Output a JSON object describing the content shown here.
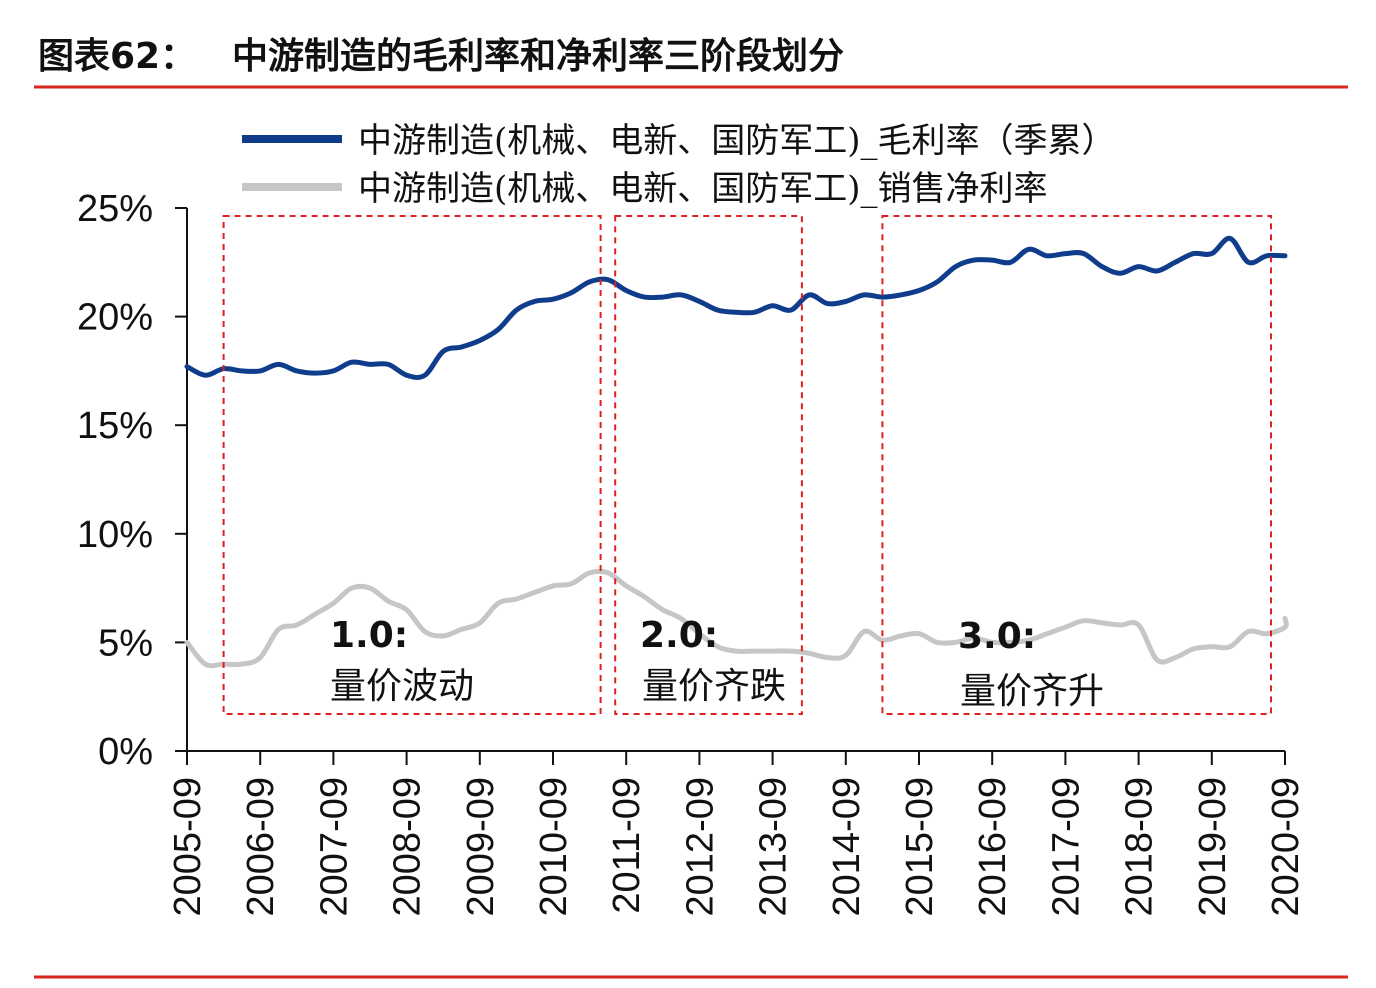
{
  "header": {
    "figure_number": "图表62：",
    "title": "中游制造的毛利率和净利率三阶段划分",
    "rule_color": "#d9251c"
  },
  "chart_data": {
    "type": "line",
    "title": "中游制造的毛利率和净利率三阶段划分",
    "xlabel": "",
    "ylabel": "",
    "ylim": [
      0,
      25
    ],
    "y_ticks": [
      "0%",
      "5%",
      "10%",
      "15%",
      "20%",
      "25%"
    ],
    "y_tick_values": [
      0,
      5,
      10,
      15,
      20,
      25
    ],
    "categories": [
      "2005-09",
      "2006-09",
      "2007-09",
      "2008-09",
      "2009-09",
      "2010-09",
      "2011-09",
      "2012-09",
      "2013-09",
      "2014-09",
      "2015-09",
      "2016-09",
      "2017-09",
      "2018-09",
      "2019-09",
      "2020-09"
    ],
    "grid": false,
    "legend_position": "top",
    "series": [
      {
        "name": "中游制造(机械、电新、国防军工)_毛利率（季累）",
        "color": "#0f3d8c",
        "points": [
          [
            2005.75,
            17.7
          ],
          [
            2006.0,
            17.3
          ],
          [
            2006.25,
            17.6
          ],
          [
            2006.5,
            17.5
          ],
          [
            2006.75,
            17.5
          ],
          [
            2007.0,
            17.8
          ],
          [
            2007.25,
            17.5
          ],
          [
            2007.5,
            17.4
          ],
          [
            2007.75,
            17.5
          ],
          [
            2008.0,
            17.9
          ],
          [
            2008.25,
            17.8
          ],
          [
            2008.5,
            17.8
          ],
          [
            2008.75,
            17.3
          ],
          [
            2009.0,
            17.3
          ],
          [
            2009.25,
            18.4
          ],
          [
            2009.5,
            18.6
          ],
          [
            2009.75,
            18.9
          ],
          [
            2010.0,
            19.4
          ],
          [
            2010.25,
            20.3
          ],
          [
            2010.5,
            20.7
          ],
          [
            2010.75,
            20.8
          ],
          [
            2011.0,
            21.1
          ],
          [
            2011.25,
            21.6
          ],
          [
            2011.5,
            21.7
          ],
          [
            2011.75,
            21.2
          ],
          [
            2012.0,
            20.9
          ],
          [
            2012.25,
            20.9
          ],
          [
            2012.5,
            21.0
          ],
          [
            2012.75,
            20.7
          ],
          [
            2013.0,
            20.3
          ],
          [
            2013.25,
            20.2
          ],
          [
            2013.5,
            20.2
          ],
          [
            2013.75,
            20.5
          ],
          [
            2014.0,
            20.3
          ],
          [
            2014.25,
            21.0
          ],
          [
            2014.5,
            20.6
          ],
          [
            2014.75,
            20.7
          ],
          [
            2015.0,
            21.0
          ],
          [
            2015.25,
            20.9
          ],
          [
            2015.5,
            21.0
          ],
          [
            2015.75,
            21.2
          ],
          [
            2016.0,
            21.6
          ],
          [
            2016.25,
            22.3
          ],
          [
            2016.5,
            22.6
          ],
          [
            2016.75,
            22.6
          ],
          [
            2017.0,
            22.5
          ],
          [
            2017.25,
            23.1
          ],
          [
            2017.5,
            22.8
          ],
          [
            2017.75,
            22.9
          ],
          [
            2018.0,
            22.9
          ],
          [
            2018.25,
            22.3
          ],
          [
            2018.5,
            22.0
          ],
          [
            2018.75,
            22.3
          ],
          [
            2019.0,
            22.1
          ],
          [
            2019.25,
            22.5
          ],
          [
            2019.5,
            22.9
          ],
          [
            2019.75,
            22.9
          ],
          [
            2020.0,
            23.6
          ],
          [
            2020.25,
            22.5
          ],
          [
            2020.5,
            22.8
          ],
          [
            2020.75,
            22.8
          ]
        ]
      },
      {
        "name": "中游制造(机械、电新、国防军工)_销售净利率",
        "color": "#c6c6c6",
        "points": [
          [
            2005.75,
            5.0
          ],
          [
            2006.0,
            4.0
          ],
          [
            2006.25,
            4.0
          ],
          [
            2006.5,
            4.0
          ],
          [
            2006.75,
            4.3
          ],
          [
            2007.0,
            5.6
          ],
          [
            2007.25,
            5.8
          ],
          [
            2007.5,
            6.3
          ],
          [
            2007.75,
            6.8
          ],
          [
            2008.0,
            7.5
          ],
          [
            2008.25,
            7.5
          ],
          [
            2008.5,
            6.9
          ],
          [
            2008.75,
            6.5
          ],
          [
            2009.0,
            5.5
          ],
          [
            2009.25,
            5.3
          ],
          [
            2009.5,
            5.6
          ],
          [
            2009.75,
            5.9
          ],
          [
            2010.0,
            6.8
          ],
          [
            2010.25,
            7.0
          ],
          [
            2010.5,
            7.3
          ],
          [
            2010.75,
            7.6
          ],
          [
            2011.0,
            7.7
          ],
          [
            2011.25,
            8.2
          ],
          [
            2011.5,
            8.2
          ],
          [
            2011.75,
            7.6
          ],
          [
            2012.0,
            7.1
          ],
          [
            2012.25,
            6.5
          ],
          [
            2012.5,
            6.1
          ],
          [
            2012.75,
            5.4
          ],
          [
            2013.0,
            4.8
          ],
          [
            2013.25,
            4.6
          ],
          [
            2013.5,
            4.6
          ],
          [
            2013.75,
            4.6
          ],
          [
            2014.0,
            4.6
          ],
          [
            2014.25,
            4.5
          ],
          [
            2014.5,
            4.3
          ],
          [
            2014.75,
            4.4
          ],
          [
            2015.0,
            5.5
          ],
          [
            2015.25,
            5.1
          ],
          [
            2015.5,
            5.3
          ],
          [
            2015.75,
            5.4
          ],
          [
            2016.0,
            5.0
          ],
          [
            2016.25,
            5.0
          ],
          [
            2016.5,
            5.2
          ],
          [
            2016.75,
            5.0
          ],
          [
            2017.0,
            5.0
          ],
          [
            2017.25,
            5.1
          ],
          [
            2017.5,
            5.4
          ],
          [
            2017.75,
            5.7
          ],
          [
            2018.0,
            6.0
          ],
          [
            2018.25,
            5.9
          ],
          [
            2018.5,
            5.8
          ],
          [
            2018.75,
            5.8
          ],
          [
            2019.0,
            4.2
          ],
          [
            2019.25,
            4.3
          ],
          [
            2019.5,
            4.7
          ],
          [
            2019.75,
            4.8
          ],
          [
            2020.0,
            4.8
          ],
          [
            2020.25,
            5.5
          ],
          [
            2020.5,
            5.4
          ],
          [
            2020.75,
            5.7
          ],
          [
            2021.0,
            6.1
          ]
        ]
      }
    ],
    "phases": [
      {
        "label": "1.0:",
        "desc": "量价波动",
        "from": 2006.25,
        "to": 2011.4
      },
      {
        "label": "2.0:",
        "desc": "量价齐跌",
        "from": 2011.6,
        "to": 2014.15
      },
      {
        "label": "3.0:",
        "desc": "量价齐升",
        "from": 2015.25,
        "to": 2020.95
      }
    ],
    "phase_box_color": "#e02020"
  }
}
